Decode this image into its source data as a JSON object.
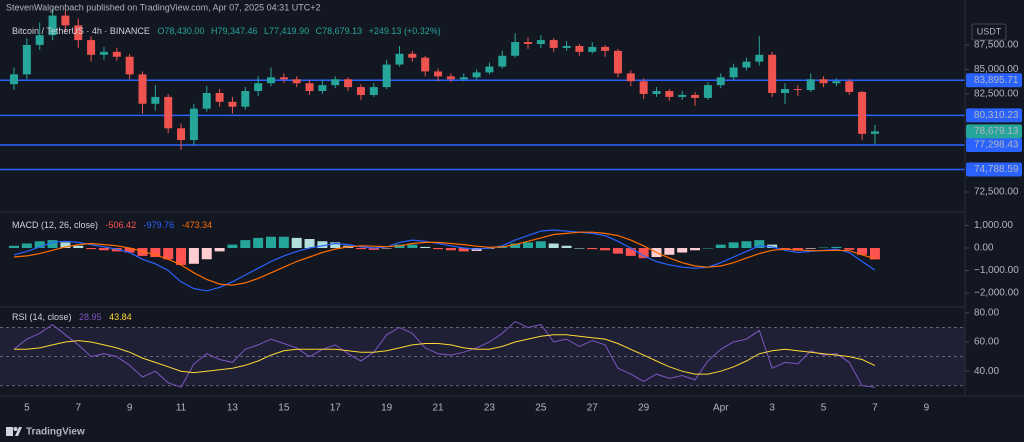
{
  "header": {
    "publisher": "StevenWalgenbach published on TradingView.com, Apr 07, 2025 04:31 UTC+2"
  },
  "currency": "USDT",
  "footer": "TradingView",
  "chart_data": [
    {
      "type": "candlestick",
      "title": "Bitcoin / TetherUS · 4h · BINANCE",
      "ohlc_legend": [
        "O78,430.00",
        "H79,347.46",
        "L77,419.90",
        "C78,679.13",
        "+249.13 (+0.32%)"
      ],
      "categories": [
        null,
        "5",
        null,
        null,
        null,
        "7",
        null,
        null,
        null,
        "9",
        null,
        null,
        null,
        "11",
        null,
        null,
        null,
        "13",
        null,
        null,
        null,
        "15",
        null,
        null,
        null,
        "17",
        null,
        null,
        null,
        "19",
        null,
        null,
        null,
        "21",
        null,
        null,
        null,
        "23",
        null,
        null,
        null,
        "25",
        null,
        null,
        null,
        "27",
        null,
        null,
        null,
        "29",
        null,
        null,
        null,
        null,
        null,
        "Apr",
        null,
        null,
        null,
        "3",
        null,
        null,
        null,
        "5",
        null,
        null,
        null,
        "7",
        null,
        null,
        null,
        "9"
      ],
      "open": [
        83500,
        84500,
        87500,
        88500,
        90500,
        89500,
        88000,
        86500,
        86800,
        86300,
        84500,
        81500,
        82200,
        79000,
        77800,
        81000,
        82600,
        81700,
        81200,
        82800,
        83600,
        84200,
        84000,
        83600,
        82800,
        83400,
        84000,
        83200,
        82400,
        83200,
        85500,
        86600,
        86200,
        84800,
        84300,
        84000,
        84200,
        84700,
        85300,
        86400,
        87800,
        87600,
        88000,
        87200,
        87400,
        86800,
        87300,
        86900,
        84600,
        83800,
        82500,
        82800,
        82200,
        82400,
        82100,
        83400,
        84200,
        85200,
        85800,
        86500,
        82600,
        83000,
        82900,
        84000,
        83600,
        83800,
        82700,
        78430,
        null,
        null,
        null,
        null
      ],
      "high": [
        85200,
        88200,
        89800,
        91200,
        91000,
        90200,
        88400,
        87300,
        87200,
        86600,
        84800,
        83400,
        82500,
        79500,
        81500,
        83300,
        83000,
        82200,
        83200,
        84300,
        85200,
        84600,
        84300,
        83900,
        84000,
        84300,
        84200,
        83500,
        83600,
        86000,
        87400,
        86900,
        86400,
        85100,
        84600,
        84600,
        85000,
        85700,
        86900,
        88700,
        88300,
        88500,
        88200,
        87900,
        87600,
        87800,
        87500,
        87100,
        84900,
        84100,
        83200,
        83000,
        82800,
        82700,
        83700,
        84600,
        85600,
        86200,
        88400,
        86800,
        83600,
        83400,
        84600,
        84300,
        84100,
        84000,
        82800,
        79347.46,
        null,
        null,
        null,
        null
      ],
      "low": [
        82900,
        84000,
        87000,
        88000,
        88800,
        87200,
        85800,
        86000,
        85900,
        84000,
        80500,
        80800,
        78500,
        76800,
        77300,
        80700,
        81200,
        80500,
        80900,
        82300,
        83300,
        83600,
        83200,
        82400,
        82500,
        83100,
        82800,
        81900,
        82200,
        83000,
        85300,
        85800,
        84300,
        83800,
        83700,
        83800,
        84000,
        84500,
        85100,
        86200,
        87100,
        87200,
        86800,
        86900,
        86400,
        86600,
        86300,
        84200,
        83300,
        82000,
        82200,
        81800,
        81900,
        81300,
        81900,
        83100,
        83900,
        84900,
        85400,
        82200,
        81500,
        82300,
        82700,
        83200,
        83300,
        82400,
        77800,
        77419.9,
        null,
        null,
        null,
        null
      ],
      "close": [
        84500,
        87500,
        88500,
        90500,
        89500,
        88000,
        86500,
        86800,
        86300,
        84500,
        81500,
        82200,
        79000,
        77800,
        81000,
        82600,
        81700,
        81200,
        82800,
        83600,
        84200,
        84000,
        83600,
        82800,
        83400,
        84000,
        83200,
        82400,
        83200,
        85500,
        86600,
        86200,
        84800,
        84300,
        84000,
        84200,
        84700,
        85300,
        86400,
        87800,
        87600,
        88000,
        87200,
        87400,
        86800,
        87300,
        86900,
        84600,
        83800,
        82500,
        82800,
        82200,
        82400,
        82100,
        83400,
        84200,
        85200,
        85800,
        86500,
        82600,
        83000,
        82900,
        84000,
        83600,
        83800,
        82700,
        78430,
        78679.13,
        null,
        null,
        null,
        null
      ],
      "up_color": "#26a69a",
      "down_color": "#ef5350",
      "ylim": [
        70660,
        92090
      ],
      "yticks": [
        {
          "value": 87500,
          "label": "87,500.00"
        },
        {
          "value": 85000,
          "label": "85,000.00"
        },
        {
          "value": 82500,
          "label": "82,500.00"
        },
        {
          "value": 72500,
          "label": "72,500.00"
        }
      ],
      "hlines": [
        {
          "value": 83895.71,
          "label": "83,895.71"
        },
        {
          "value": 80310.23,
          "label": "80,310.23"
        },
        {
          "value": 77298.43,
          "label": "77,298.43"
        },
        {
          "value": 74788.59,
          "label": "74,788.59"
        }
      ],
      "hline_color": "#2962ff",
      "last_price": {
        "value": 78679.13,
        "label": "78,679.13"
      }
    },
    {
      "type": "macd",
      "title": "MACD (12, 26, close)",
      "series": [
        {
          "name": "-506.42",
          "color": "#ff5252",
          "values": [
            100,
            200,
            300,
            350,
            250,
            100,
            -50,
            -100,
            -150,
            -200,
            -350,
            -400,
            -500,
            -750,
            -700,
            -500,
            -150,
            150,
            350,
            450,
            500,
            500,
            450,
            400,
            300,
            250,
            100,
            -50,
            -80,
            -10,
            150,
            150,
            50,
            -50,
            -100,
            -150,
            -130,
            -30,
            50,
            200,
            250,
            300,
            200,
            100,
            0,
            -50,
            -100,
            -250,
            -350,
            -450,
            -400,
            -300,
            -200,
            -100,
            0,
            150,
            250,
            300,
            350,
            150,
            -50,
            -120,
            -30,
            20,
            50,
            -80,
            -300,
            -506.42,
            null,
            null,
            null,
            null
          ]
        },
        {
          "name": "-979.76",
          "color": "#2962ff",
          "values": [
            -300,
            -150,
            50,
            250,
            300,
            250,
            150,
            50,
            -50,
            -200,
            -500,
            -700,
            -1000,
            -1500,
            -1800,
            -1900,
            -1750,
            -1500,
            -1200,
            -900,
            -600,
            -350,
            -150,
            0,
            100,
            200,
            150,
            50,
            0,
            50,
            250,
            350,
            300,
            200,
            100,
            0,
            -50,
            0,
            100,
            350,
            550,
            750,
            800,
            750,
            700,
            650,
            550,
            300,
            0,
            -350,
            -600,
            -750,
            -850,
            -900,
            -850,
            -650,
            -400,
            -150,
            100,
            50,
            -100,
            -200,
            -150,
            -100,
            -50,
            -200,
            -600,
            -979.76,
            null,
            null,
            null,
            null
          ]
        },
        {
          "name": "-473.34",
          "color": "#ff6d00",
          "values": [
            -400,
            -350,
            -250,
            -100,
            50,
            150,
            200,
            150,
            100,
            0,
            -150,
            -300,
            -500,
            -750,
            -1100,
            -1400,
            -1600,
            -1650,
            -1550,
            -1350,
            -1100,
            -850,
            -600,
            -400,
            -200,
            -50,
            50,
            100,
            80,
            60,
            100,
            200,
            250,
            250,
            200,
            150,
            80,
            30,
            50,
            150,
            300,
            450,
            600,
            650,
            700,
            700,
            650,
            550,
            350,
            100,
            -200,
            -450,
            -650,
            -800,
            -850,
            -800,
            -650,
            -450,
            -250,
            -100,
            -50,
            -80,
            -120,
            -120,
            -100,
            -120,
            -300,
            -473.34,
            null,
            null,
            null,
            null
          ]
        }
      ],
      "histogram_colors": [
        "#26a69a",
        "#b2dfdb",
        "#ffcdd2",
        "#ff5252"
      ],
      "ylim": [
        -2530,
        1510
      ],
      "yticks": [
        {
          "value": 1000,
          "label": "1,000.00"
        },
        {
          "value": 0,
          "label": "0.00"
        },
        {
          "value": -1000,
          "label": "−1,000.00"
        },
        {
          "value": -2000,
          "label": "−2,000.00"
        }
      ]
    },
    {
      "type": "rsi",
      "title": "RSI (14, close)",
      "series": [
        {
          "name": "28.95",
          "color": "#7e57c2",
          "values": [
            55,
            62,
            66,
            72,
            65,
            58,
            50,
            52,
            50,
            44,
            36,
            40,
            32,
            29,
            45,
            52,
            48,
            46,
            55,
            58,
            62,
            59,
            56,
            50,
            55,
            58,
            52,
            47,
            53,
            65,
            70,
            66,
            56,
            52,
            51,
            53,
            56,
            60,
            66,
            74,
            70,
            72,
            60,
            62,
            57,
            61,
            58,
            42,
            38,
            33,
            38,
            35,
            37,
            34,
            47,
            55,
            60,
            62,
            68,
            42,
            46,
            45,
            54,
            51,
            52,
            46,
            30,
            28.95,
            null,
            null,
            null,
            null
          ]
        },
        {
          "name": "43.84",
          "color": "#fdd835",
          "values": [
            55,
            55,
            56,
            58,
            60,
            61,
            60,
            58,
            56,
            53,
            49,
            46,
            43,
            40,
            39,
            40,
            41,
            42,
            44,
            47,
            51,
            54,
            55,
            55,
            55,
            55,
            54,
            53,
            53,
            54,
            56,
            58,
            59,
            59,
            58,
            56,
            55,
            55,
            57,
            60,
            62,
            64,
            65,
            65,
            64,
            63,
            62,
            59,
            55,
            51,
            47,
            43,
            40,
            38,
            38,
            40,
            43,
            47,
            52,
            54,
            55,
            54,
            53,
            52,
            51,
            50,
            48,
            43.84,
            null,
            null,
            null,
            null
          ]
        }
      ],
      "levels": [
        70,
        50,
        30
      ],
      "ylim": [
        25,
        82
      ],
      "yticks": [
        {
          "value": 80,
          "label": "80.00"
        },
        {
          "value": 60,
          "label": "60.00"
        },
        {
          "value": 40,
          "label": "40.00"
        }
      ]
    }
  ]
}
